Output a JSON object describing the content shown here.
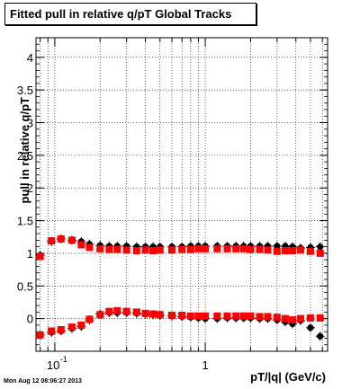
{
  "chart_data": {
    "type": "scatter",
    "title": "Fitted pull in relative q/pT  Global Tracks",
    "xlabel": "pT/|q| (GeV/c)",
    "ylabel": "pull in relative q/pT",
    "xscale": "log",
    "xlim": [
      0.075,
      6.5
    ],
    "ylim": [
      -0.5,
      4.3
    ],
    "x_tick_labels": [
      "10",
      "1"
    ],
    "x_tick_label_exponent": "-1",
    "y_tick_labels": [
      "0",
      "0.5",
      "1",
      "1.5",
      "2",
      "2.5",
      "3",
      "3.5",
      "4"
    ],
    "grid": true,
    "series": [
      {
        "color": "#000000",
        "x": [
          0.08,
          0.095,
          0.11,
          0.13,
          0.15,
          0.17,
          0.2,
          0.23,
          0.26,
          0.3,
          0.35,
          0.4,
          0.45,
          0.5,
          0.6,
          0.7,
          0.8,
          0.9,
          1.0,
          1.2,
          1.4,
          1.6,
          1.8,
          2.0,
          2.3,
          2.6,
          3.0,
          3.4,
          3.8,
          4.3,
          5.0,
          5.8
        ],
        "values": [
          0.97,
          1.18,
          1.22,
          1.2,
          1.18,
          1.14,
          1.12,
          1.11,
          1.11,
          1.11,
          1.1,
          1.1,
          1.1,
          1.1,
          1.1,
          1.1,
          1.11,
          1.11,
          1.11,
          1.11,
          1.11,
          1.11,
          1.11,
          1.11,
          1.11,
          1.11,
          1.11,
          1.11,
          1.1,
          1.08,
          1.09,
          1.1
        ]
      },
      {
        "color": "#ff0000",
        "x": [
          0.08,
          0.095,
          0.11,
          0.13,
          0.15,
          0.17,
          0.2,
          0.23,
          0.26,
          0.3,
          0.35,
          0.4,
          0.45,
          0.5,
          0.6,
          0.7,
          0.8,
          0.9,
          1.0,
          1.2,
          1.4,
          1.6,
          1.8,
          2.0,
          2.3,
          2.6,
          3.0,
          3.4,
          3.8,
          4.3,
          5.0,
          5.8
        ],
        "values": [
          0.95,
          1.19,
          1.22,
          1.2,
          1.13,
          1.09,
          1.07,
          1.06,
          1.06,
          1.05,
          1.04,
          1.05,
          1.04,
          1.05,
          1.05,
          1.06,
          1.06,
          1.07,
          1.07,
          1.07,
          1.07,
          1.07,
          1.07,
          1.06,
          1.06,
          1.05,
          1.03,
          1.04,
          1.04,
          1.05,
          1.03,
          1.0
        ]
      },
      {
        "color": "#000000",
        "x": [
          0.08,
          0.095,
          0.11,
          0.13,
          0.15,
          0.17,
          0.2,
          0.23,
          0.26,
          0.3,
          0.35,
          0.4,
          0.45,
          0.5,
          0.6,
          0.7,
          0.8,
          0.9,
          1.0,
          1.2,
          1.4,
          1.6,
          1.8,
          2.0,
          2.3,
          2.6,
          3.0,
          3.4,
          3.8,
          4.3,
          5.0,
          5.8
        ],
        "values": [
          -0.25,
          -0.21,
          -0.19,
          -0.15,
          -0.12,
          -0.02,
          0.07,
          0.09,
          0.09,
          0.09,
          0.08,
          0.07,
          0.06,
          0.05,
          0.04,
          0.03,
          0.02,
          0.01,
          0.0,
          0.0,
          0.01,
          0.01,
          0.01,
          0.01,
          0.0,
          0.0,
          -0.02,
          -0.05,
          -0.08,
          -0.03,
          -0.14,
          -0.27
        ]
      },
      {
        "color": "#ff0000",
        "x": [
          0.08,
          0.095,
          0.11,
          0.13,
          0.15,
          0.17,
          0.2,
          0.23,
          0.26,
          0.3,
          0.35,
          0.4,
          0.45,
          0.5,
          0.6,
          0.7,
          0.8,
          0.9,
          1.0,
          1.2,
          1.4,
          1.6,
          1.8,
          2.0,
          2.3,
          2.6,
          3.0,
          3.4,
          3.8,
          4.3,
          5.0,
          5.8
        ],
        "values": [
          -0.25,
          -0.19,
          -0.17,
          -0.13,
          -0.1,
          -0.01,
          0.06,
          0.11,
          0.12,
          0.11,
          0.1,
          0.08,
          0.07,
          0.06,
          0.05,
          0.05,
          0.04,
          0.04,
          0.04,
          0.04,
          0.04,
          0.04,
          0.04,
          0.04,
          0.03,
          0.03,
          0.02,
          0.0,
          -0.02,
          0.0,
          0.01,
          0.01
        ]
      }
    ]
  },
  "timestamp": "Mon Aug 12 08:06:27 2013"
}
